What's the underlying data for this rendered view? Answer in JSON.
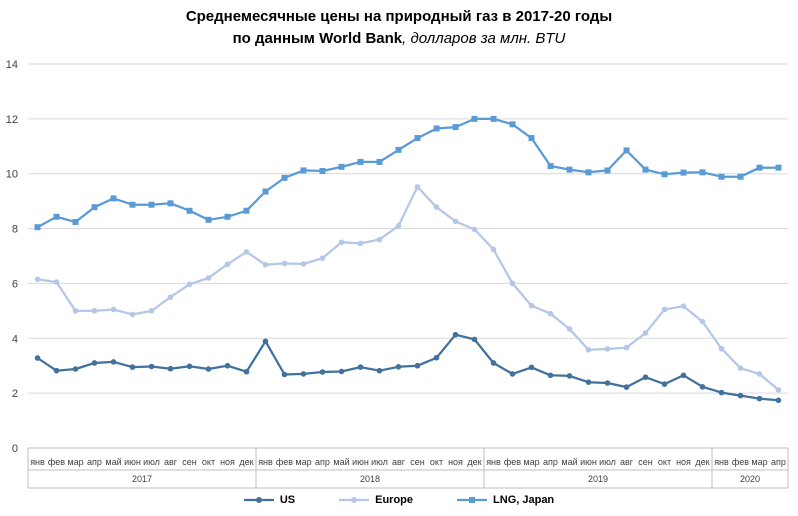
{
  "title": {
    "line1": "Среднемесячные  цены на природный  газ в 2017-20 годы",
    "line2_bold": "по данным  World Bank",
    "line2_italic": ", долларов за млн. BTU"
  },
  "chart_data": {
    "type": "line",
    "title": "Среднемесячные  цены на природный  газ в 2017-20 годы по данным  World Bank, долларов за млн. BTU",
    "ylim": [
      0,
      14
    ],
    "yticks": [
      0,
      2,
      4,
      6,
      8,
      10,
      12,
      14
    ],
    "grid": true,
    "legend_position": "bottom",
    "months": [
      "янв",
      "фев",
      "мар",
      "апр",
      "май",
      "июн",
      "июл",
      "авг",
      "сен",
      "окт",
      "ноя",
      "дек",
      "янв",
      "фев",
      "мар",
      "апр",
      "май",
      "июн",
      "июл",
      "авг",
      "сен",
      "окт",
      "ноя",
      "дек",
      "янв",
      "фев",
      "мар",
      "апр",
      "май",
      "июн",
      "июл",
      "авг",
      "сен",
      "окт",
      "ноя",
      "дек",
      "янв",
      "фев",
      "мар",
      "апр"
    ],
    "years": [
      {
        "label": "2017",
        "count": 12
      },
      {
        "label": "2018",
        "count": 12
      },
      {
        "label": "2019",
        "count": 12
      },
      {
        "label": "2020",
        "count": 4
      }
    ],
    "series": [
      {
        "name": "US",
        "color": "#41719C",
        "marker": "circle",
        "values": [
          3.28,
          2.82,
          2.88,
          3.1,
          3.14,
          2.95,
          2.97,
          2.89,
          2.98,
          2.88,
          3.0,
          2.78,
          3.89,
          2.68,
          2.7,
          2.77,
          2.79,
          2.95,
          2.82,
          2.96,
          3.0,
          3.29,
          4.13,
          3.96,
          3.1,
          2.7,
          2.94,
          2.65,
          2.63,
          2.4,
          2.37,
          2.22,
          2.58,
          2.33,
          2.65,
          2.23,
          2.02,
          1.91,
          1.8,
          1.74
        ]
      },
      {
        "name": "Europe",
        "color": "#B4C7E7",
        "marker": "circle",
        "values": [
          6.15,
          6.05,
          5.0,
          5.0,
          5.05,
          4.87,
          5.0,
          5.5,
          5.97,
          6.2,
          6.7,
          7.15,
          6.68,
          6.73,
          6.71,
          6.92,
          7.5,
          7.46,
          7.6,
          8.1,
          9.52,
          8.78,
          8.26,
          7.97,
          7.24,
          6.0,
          5.19,
          4.9,
          4.34,
          3.58,
          3.61,
          3.66,
          4.19,
          5.05,
          5.17,
          4.61,
          3.62,
          2.91,
          2.7,
          2.12
        ]
      },
      {
        "name": "LNG, Japan",
        "color": "#5B9BD5",
        "marker": "square",
        "values": [
          8.05,
          8.43,
          8.24,
          8.78,
          9.1,
          8.87,
          8.87,
          8.92,
          8.65,
          8.32,
          8.43,
          8.65,
          9.35,
          9.85,
          10.12,
          10.1,
          10.25,
          10.43,
          10.43,
          10.87,
          11.3,
          11.65,
          11.7,
          12.0,
          12.0,
          11.8,
          11.3,
          10.28,
          10.15,
          10.05,
          10.12,
          10.85,
          10.15,
          9.98,
          10.04,
          10.05,
          9.89,
          9.89,
          10.22,
          10.22
        ]
      }
    ]
  }
}
